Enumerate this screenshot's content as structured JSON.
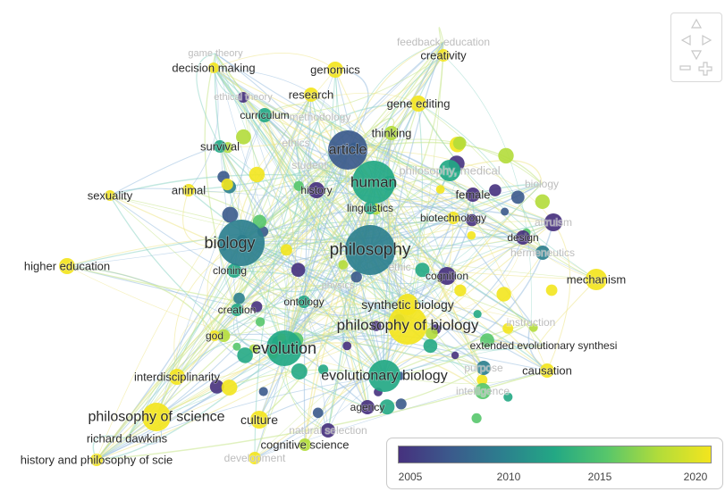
{
  "colors": {
    "scale": [
      "#46317e",
      "#3b5a8c",
      "#2c7f8e",
      "#23a884",
      "#57c66b",
      "#b2dc3a",
      "#f3e51e"
    ],
    "edge": [
      "#9bbfe0",
      "#8fd6c7",
      "#c6e58a",
      "#efe68a"
    ]
  },
  "network": {
    "labels": [
      {
        "id": "game-theory",
        "text": "game theory"
      },
      {
        "id": "decision-making",
        "text": "decision making"
      },
      {
        "id": "genomics",
        "text": "genomics"
      },
      {
        "id": "creativity",
        "text": "creativity"
      },
      {
        "id": "feedback-education",
        "text": "feedback education"
      },
      {
        "id": "ethical-theory",
        "text": "ethical theory"
      },
      {
        "id": "research",
        "text": "research"
      },
      {
        "id": "gene-editing",
        "text": "gene editing"
      },
      {
        "id": "curriculum",
        "text": "curriculum"
      },
      {
        "id": "methodology",
        "text": "methodology"
      },
      {
        "id": "thinking",
        "text": "thinking"
      },
      {
        "id": "survival",
        "text": "survival"
      },
      {
        "id": "ethics",
        "text": "ethics"
      },
      {
        "id": "article",
        "text": "article"
      },
      {
        "id": "student",
        "text": "student"
      },
      {
        "id": "philosophy-medical",
        "text": "philosophy, medical"
      },
      {
        "id": "sexuality",
        "text": "sexuality"
      },
      {
        "id": "animal",
        "text": "animal"
      },
      {
        "id": "history",
        "text": "history"
      },
      {
        "id": "human",
        "text": "human"
      },
      {
        "id": "female",
        "text": "female"
      },
      {
        "id": "biology-2",
        "text": "biology"
      },
      {
        "id": "linguistics",
        "text": "linguistics"
      },
      {
        "id": "biotechnology",
        "text": "biotechnology"
      },
      {
        "id": "altruism",
        "text": "altruism"
      },
      {
        "id": "biology",
        "text": "biology"
      },
      {
        "id": "philosophy",
        "text": "philosophy"
      },
      {
        "id": "design",
        "text": "design"
      },
      {
        "id": "hermeneutics",
        "text": "hermeneutics"
      },
      {
        "id": "ethic",
        "text": "ethic"
      },
      {
        "id": "higher-education",
        "text": "higher education"
      },
      {
        "id": "cloning",
        "text": "cloning"
      },
      {
        "id": "cognition",
        "text": "cognition"
      },
      {
        "id": "mechanism",
        "text": "mechanism"
      },
      {
        "id": "physics",
        "text": "physics"
      },
      {
        "id": "ontology",
        "text": "ontology"
      },
      {
        "id": "synthetic-biology",
        "text": "synthetic biology"
      },
      {
        "id": "creation",
        "text": "creation"
      },
      {
        "id": "philosophy-of-biology",
        "text": "philosophy of biology"
      },
      {
        "id": "instruction",
        "text": "instruction"
      },
      {
        "id": "god",
        "text": "god"
      },
      {
        "id": "evolution",
        "text": "evolution"
      },
      {
        "id": "extended-evolutionary",
        "text": "extended evolutionary synthesi"
      },
      {
        "id": "interdisciplinarity",
        "text": "interdisciplinarity"
      },
      {
        "id": "purpose",
        "text": "purpose"
      },
      {
        "id": "causation",
        "text": "causation"
      },
      {
        "id": "evolutionary-biology",
        "text": "evolutionary biology"
      },
      {
        "id": "intelligence",
        "text": "intelligence"
      },
      {
        "id": "agency",
        "text": "agency"
      },
      {
        "id": "philosophy-of-science",
        "text": "philosophy of science"
      },
      {
        "id": "culture",
        "text": "culture"
      },
      {
        "id": "natural-selection",
        "text": "natural selection"
      },
      {
        "id": "richard-dawkins",
        "text": "richard dawkins"
      },
      {
        "id": "cognitive-science",
        "text": "cognitive science"
      },
      {
        "id": "history-philosophy-science",
        "text": "history and philosophy of scie"
      },
      {
        "id": "development",
        "text": "development"
      }
    ]
  },
  "legend": {
    "gradient": [
      "#46317e",
      "#3b5a8c",
      "#2c7f8e",
      "#23a884",
      "#57c66b",
      "#b2dc3a",
      "#f3e51e"
    ],
    "ticks": [
      "2005",
      "2010",
      "2015",
      "2020"
    ]
  },
  "navigation": {
    "icons": [
      "arrow-up-icon",
      "arrow-left-icon",
      "arrow-right-icon",
      "arrow-down-icon",
      "zoom-out-icon",
      "zoom-in-icon"
    ]
  }
}
